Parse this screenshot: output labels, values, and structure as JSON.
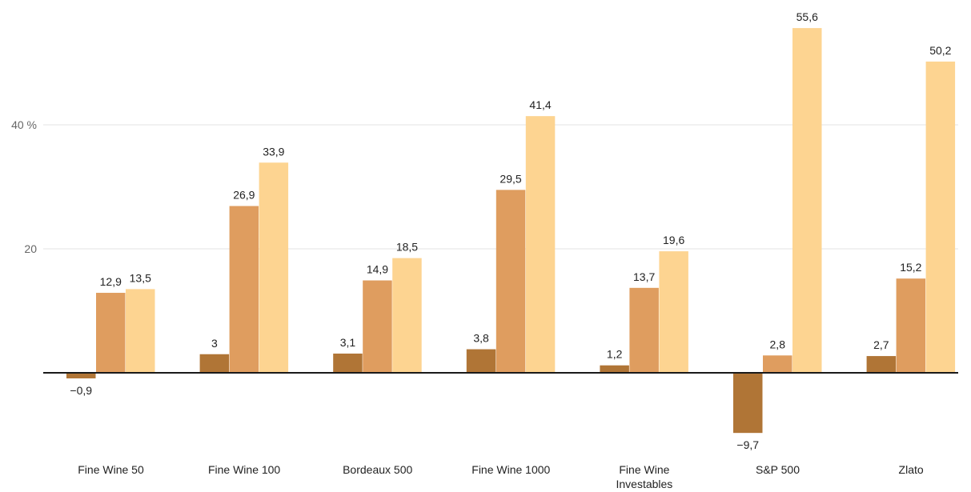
{
  "chart_data": {
    "type": "bar",
    "categories": [
      [
        "Fine Wine 50"
      ],
      [
        "Fine Wine 100"
      ],
      [
        "Bordeaux 500"
      ],
      [
        "Fine Wine 1000"
      ],
      [
        "Fine Wine",
        "Investables"
      ],
      [
        "S&P 500"
      ],
      [
        "Zlato"
      ]
    ],
    "series": [
      {
        "values": [
          -0.9,
          3,
          3.1,
          3.8,
          1.2,
          -9.7,
          2.7
        ],
        "color": "#b07536"
      },
      {
        "values": [
          12.9,
          26.9,
          14.9,
          29.5,
          13.7,
          2.8,
          15.2
        ],
        "color": "#df9d5f"
      },
      {
        "values": [
          13.5,
          33.9,
          18.5,
          41.4,
          19.6,
          55.6,
          50.2
        ],
        "color": "#fdd491"
      }
    ],
    "value_labels": [
      [
        "−0,9",
        "3",
        "3,1",
        "3,8",
        "1,2",
        "−9,7",
        "2,7"
      ],
      [
        "12,9",
        "26,9",
        "14,9",
        "29,5",
        "13,7",
        "2,8",
        "15,2"
      ],
      [
        "13,5",
        "33,9",
        "18,5",
        "41,4",
        "19,6",
        "55,6",
        "50,2"
      ]
    ],
    "y_ticks": [
      {
        "value": 20,
        "label": "20"
      },
      {
        "value": 40,
        "label": "40 %"
      }
    ],
    "ylim": [
      -12,
      60
    ],
    "grid": true,
    "legend": "none"
  }
}
